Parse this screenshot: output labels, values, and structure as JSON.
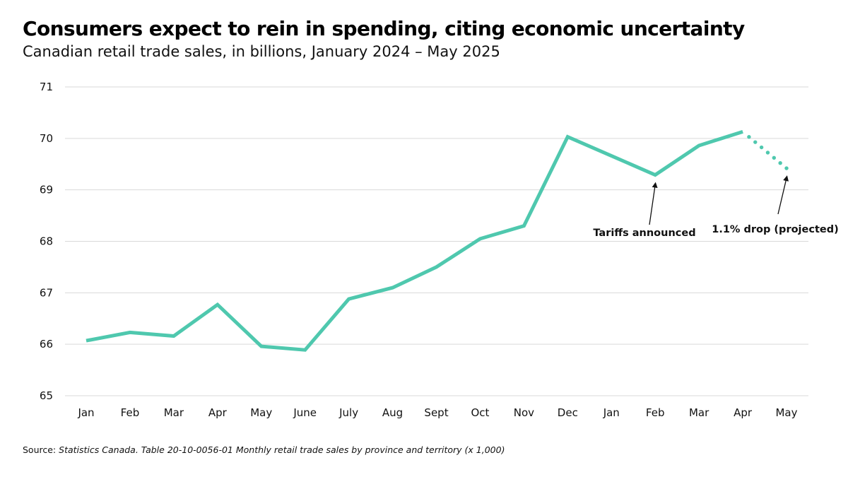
{
  "chart_data": {
    "type": "line",
    "title": "Consumers expect to rein in spending, citing economic uncertainty",
    "subtitle": "Canadian retail trade sales, in billions, January 2024 – May 2025",
    "xlabel": "",
    "ylabel": "",
    "ylim": [
      65,
      71
    ],
    "yticks": [
      "65",
      "66",
      "67",
      "68",
      "69",
      "70",
      "71"
    ],
    "categories": [
      "Jan",
      "Feb",
      "Mar",
      "Apr",
      "May",
      "June",
      "July",
      "Aug",
      "Sept",
      "Oct",
      "Nov",
      "Dec",
      "Jan",
      "Feb",
      "Mar",
      "Apr",
      "May"
    ],
    "grid": true,
    "series": [
      {
        "name": "Retail trade sales",
        "style": "solid",
        "color": "#4fc8ae",
        "values": [
          66.07,
          66.23,
          66.16,
          66.77,
          65.96,
          65.89,
          66.88,
          67.1,
          67.5,
          68.05,
          68.3,
          70.03,
          69.66,
          69.29,
          69.86,
          70.13,
          null
        ]
      },
      {
        "name": "Projected",
        "style": "dotted",
        "color": "#4fc8ae",
        "values": [
          null,
          null,
          null,
          null,
          null,
          null,
          null,
          null,
          null,
          null,
          null,
          null,
          null,
          null,
          null,
          70.13,
          69.42
        ]
      }
    ],
    "annotations": [
      {
        "text": "Tariffs announced",
        "target_index": 13
      },
      {
        "text": "1.1% drop (projected)",
        "target_index": 16
      }
    ]
  },
  "source": {
    "label": "Source:",
    "text": "Statistics Canada. Table 20-10-0056-01 Monthly retail trade sales by province and territory (x 1,000)"
  },
  "colors": {
    "line": "#4fc8ae",
    "grid": "#d9d9d9",
    "text": "#111111"
  }
}
